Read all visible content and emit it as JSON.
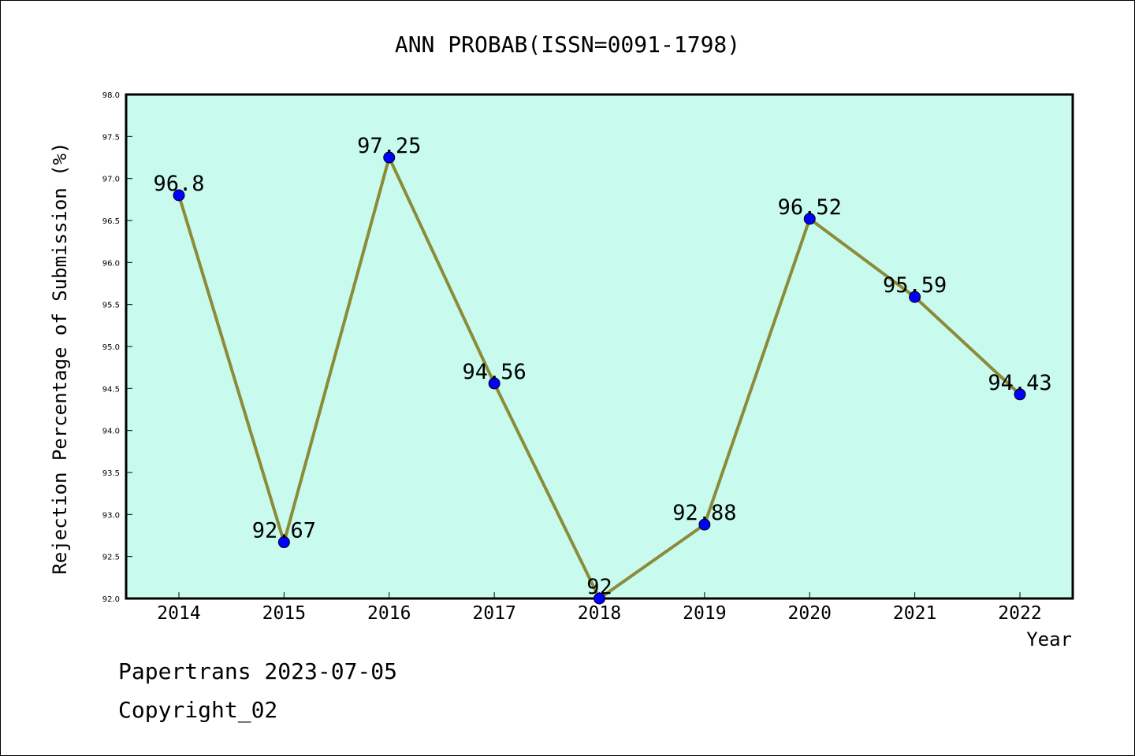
{
  "chart_data": {
    "type": "line",
    "title": "ANN PROBAB(ISSN=0091-1798)",
    "xlabel": "Year",
    "ylabel": "Rejection Percentage of Submission (%)",
    "categories": [
      "2014",
      "2015",
      "2016",
      "2017",
      "2018",
      "2019",
      "2020",
      "2021",
      "2022"
    ],
    "series": [
      {
        "values": [
          96.8,
          92.67,
          97.25,
          94.56,
          92,
          92.88,
          96.52,
          95.59,
          94.43
        ],
        "labels": [
          "96.8",
          "92.67",
          "97.25",
          "94.56",
          "92",
          "92.88",
          "96.52",
          "95.59",
          "94.43"
        ]
      }
    ],
    "ylim": [
      92.0,
      98.0
    ],
    "yticks": [
      "92.0",
      "92.5",
      "93.0",
      "93.5",
      "94.0",
      "94.5",
      "95.0",
      "95.5",
      "96.0",
      "96.5",
      "97.0",
      "97.5",
      "98.0"
    ],
    "grid": false,
    "colors": {
      "plot_background": "#c8fbee",
      "line": "#8b8b3a",
      "marker": "#0000ff"
    }
  },
  "footer": {
    "line1": "Papertrans 2023-07-05",
    "line2": "Copyright_02"
  }
}
